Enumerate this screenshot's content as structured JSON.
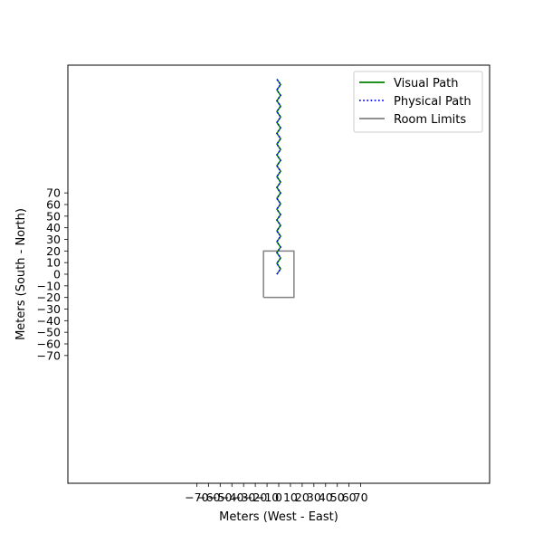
{
  "chart_data": {
    "type": "line",
    "title": "",
    "xlabel": "Meters (West - East)",
    "ylabel": "Meters (South - North)",
    "xlim": [
      -180,
      180
    ],
    "ylim": [
      -180,
      180
    ],
    "xticks": [
      -70,
      -60,
      -50,
      -40,
      -30,
      -20,
      -10,
      0,
      10,
      20,
      30,
      40,
      50,
      60,
      70
    ],
    "yticks": [
      -70,
      -60,
      -50,
      -40,
      -30,
      -20,
      -10,
      0,
      10,
      20,
      30,
      40,
      50,
      60,
      70
    ],
    "xtick_labels": [
      "−70",
      "−60",
      "−50",
      "−40",
      "−30",
      "−20",
      "−10",
      "0",
      "10",
      "20",
      "30",
      "40",
      "50",
      "60",
      "70"
    ],
    "ytick_labels": [
      "−70",
      "−60",
      "−50",
      "−40",
      "−30",
      "−20",
      "−10",
      "0",
      "10",
      "20",
      "30",
      "40",
      "50",
      "60",
      "70"
    ],
    "grid": false,
    "legend_position": "top-right",
    "series": [
      {
        "name": "Visual Path",
        "style": "solid",
        "color": "#008000",
        "zigzag": {
          "x_center": 0,
          "amplitude": 1.6,
          "y_start": 0,
          "y_end": 168,
          "segments": 36
        }
      },
      {
        "name": "Physical Path",
        "style": "dotted",
        "color": "#0000ff",
        "zigzag": {
          "x_center": 0,
          "amplitude": 1.6,
          "y_start": 0,
          "y_end": 168,
          "segments": 36
        }
      },
      {
        "name": "Room Limits",
        "style": "solid",
        "color": "#808080",
        "x": [
          -13,
          13,
          13,
          -13,
          -13
        ],
        "y": [
          -20,
          -20,
          20,
          20,
          -20
        ]
      }
    ]
  }
}
